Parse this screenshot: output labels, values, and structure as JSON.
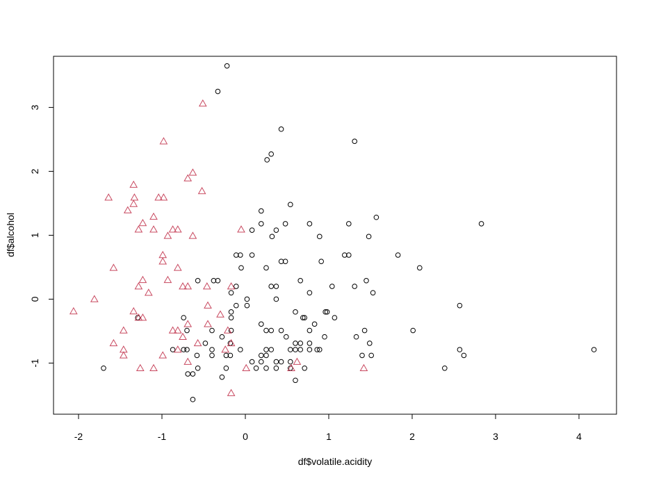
{
  "chart_data": {
    "type": "scatter",
    "xlabel": "df$volatile.acidity",
    "ylabel": "df$alcohol",
    "xlim": [
      -2.3,
      4.45
    ],
    "ylim": [
      -1.8,
      3.8
    ],
    "xticks": [
      -2,
      -1,
      0,
      1,
      2,
      3,
      4
    ],
    "yticks": [
      -1,
      0,
      1,
      2,
      3
    ],
    "xtick_labels": [
      "-2",
      "-1",
      "0",
      "1",
      "2",
      "3",
      "4"
    ],
    "ytick_labels": [
      "-1",
      "0",
      "1",
      "2",
      "3"
    ],
    "grid": false,
    "legend": "none",
    "series": [
      {
        "marker": "circle",
        "color": "#000000",
        "points": [
          [
            -0.22,
            3.65
          ],
          [
            -0.33,
            3.25
          ],
          [
            0.43,
            2.66
          ],
          [
            1.31,
            2.47
          ],
          [
            0.31,
            2.27
          ],
          [
            0.26,
            2.18
          ],
          [
            0.54,
            1.48
          ],
          [
            1.57,
            1.28
          ],
          [
            0.19,
            1.38
          ],
          [
            0.19,
            1.18
          ],
          [
            0.48,
            1.18
          ],
          [
            0.77,
            1.18
          ],
          [
            1.24,
            1.18
          ],
          [
            2.83,
            1.18
          ],
          [
            0.08,
            1.08
          ],
          [
            0.37,
            1.08
          ],
          [
            0.32,
            0.98
          ],
          [
            0.89,
            0.98
          ],
          [
            1.48,
            0.98
          ],
          [
            -0.11,
            0.69
          ],
          [
            -0.06,
            0.69
          ],
          [
            0.08,
            0.69
          ],
          [
            1.19,
            0.69
          ],
          [
            1.24,
            0.69
          ],
          [
            1.83,
            0.69
          ],
          [
            0.43,
            0.59
          ],
          [
            0.48,
            0.59
          ],
          [
            0.91,
            0.59
          ],
          [
            -0.05,
            0.49
          ],
          [
            0.25,
            0.49
          ],
          [
            2.09,
            0.49
          ],
          [
            -0.57,
            0.29
          ],
          [
            -0.38,
            0.29
          ],
          [
            -0.33,
            0.29
          ],
          [
            0.66,
            0.29
          ],
          [
            1.45,
            0.29
          ],
          [
            -0.11,
            0.2
          ],
          [
            0.31,
            0.2
          ],
          [
            0.37,
            0.2
          ],
          [
            1.04,
            0.2
          ],
          [
            1.31,
            0.2
          ],
          [
            -0.17,
            0.1
          ],
          [
            0.77,
            0.1
          ],
          [
            1.53,
            0.1
          ],
          [
            0.02,
            0.0
          ],
          [
            0.37,
            0.0
          ],
          [
            -0.11,
            -0.1
          ],
          [
            0.02,
            -0.1
          ],
          [
            2.57,
            -0.1
          ],
          [
            -0.17,
            -0.2
          ],
          [
            0.6,
            -0.2
          ],
          [
            0.96,
            -0.2
          ],
          [
            0.98,
            -0.2
          ],
          [
            -1.29,
            -0.29
          ],
          [
            -0.74,
            -0.29
          ],
          [
            -0.17,
            -0.29
          ],
          [
            0.69,
            -0.29
          ],
          [
            0.71,
            -0.29
          ],
          [
            1.07,
            -0.29
          ],
          [
            0.19,
            -0.39
          ],
          [
            0.83,
            -0.39
          ],
          [
            -0.7,
            -0.49
          ],
          [
            -0.4,
            -0.49
          ],
          [
            -0.17,
            -0.49
          ],
          [
            0.25,
            -0.49
          ],
          [
            0.31,
            -0.49
          ],
          [
            0.43,
            -0.49
          ],
          [
            0.77,
            -0.49
          ],
          [
            1.43,
            -0.49
          ],
          [
            2.01,
            -0.49
          ],
          [
            -0.28,
            -0.59
          ],
          [
            0.49,
            -0.59
          ],
          [
            0.95,
            -0.59
          ],
          [
            1.33,
            -0.59
          ],
          [
            -0.48,
            -0.69
          ],
          [
            -0.18,
            -0.69
          ],
          [
            0.6,
            -0.69
          ],
          [
            0.66,
            -0.69
          ],
          [
            0.77,
            -0.69
          ],
          [
            1.49,
            -0.69
          ],
          [
            -0.87,
            -0.79
          ],
          [
            -0.74,
            -0.79
          ],
          [
            -0.7,
            -0.79
          ],
          [
            -0.4,
            -0.79
          ],
          [
            -0.06,
            -0.79
          ],
          [
            0.25,
            -0.79
          ],
          [
            0.31,
            -0.79
          ],
          [
            0.54,
            -0.79
          ],
          [
            0.6,
            -0.79
          ],
          [
            0.66,
            -0.79
          ],
          [
            0.77,
            -0.79
          ],
          [
            0.86,
            -0.79
          ],
          [
            0.89,
            -0.79
          ],
          [
            2.57,
            -0.79
          ],
          [
            4.18,
            -0.79
          ],
          [
            -0.58,
            -0.88
          ],
          [
            -0.4,
            -0.88
          ],
          [
            -0.23,
            -0.88
          ],
          [
            -0.18,
            -0.88
          ],
          [
            0.19,
            -0.88
          ],
          [
            0.25,
            -0.88
          ],
          [
            1.4,
            -0.88
          ],
          [
            1.51,
            -0.88
          ],
          [
            2.62,
            -0.88
          ],
          [
            0.08,
            -0.98
          ],
          [
            0.19,
            -0.98
          ],
          [
            0.37,
            -0.98
          ],
          [
            0.43,
            -0.98
          ],
          [
            0.54,
            -0.98
          ],
          [
            -1.7,
            -1.08
          ],
          [
            -0.57,
            -1.08
          ],
          [
            -0.23,
            -1.08
          ],
          [
            0.13,
            -1.08
          ],
          [
            0.25,
            -1.08
          ],
          [
            0.37,
            -1.08
          ],
          [
            0.54,
            -1.08
          ],
          [
            0.71,
            -1.08
          ],
          [
            2.39,
            -1.08
          ],
          [
            -0.69,
            -1.17
          ],
          [
            -0.63,
            -1.17
          ],
          [
            -0.28,
            -1.22
          ],
          [
            0.6,
            -1.27
          ],
          [
            -0.63,
            -1.57
          ]
        ]
      },
      {
        "marker": "triangle",
        "color": "#c8485f",
        "points": [
          [
            -0.51,
            3.06
          ],
          [
            -0.98,
            2.47
          ],
          [
            -0.63,
            1.98
          ],
          [
            -0.69,
            1.89
          ],
          [
            -1.34,
            1.79
          ],
          [
            -0.52,
            1.69
          ],
          [
            -1.64,
            1.59
          ],
          [
            -1.33,
            1.59
          ],
          [
            -1.04,
            1.59
          ],
          [
            -0.98,
            1.59
          ],
          [
            -1.34,
            1.49
          ],
          [
            -1.41,
            1.39
          ],
          [
            -1.1,
            1.29
          ],
          [
            -1.23,
            1.19
          ],
          [
            -1.28,
            1.09
          ],
          [
            -1.1,
            1.09
          ],
          [
            -0.87,
            1.09
          ],
          [
            -0.81,
            1.09
          ],
          [
            -0.05,
            1.09
          ],
          [
            -0.93,
            0.99
          ],
          [
            -0.63,
            0.99
          ],
          [
            -0.99,
            0.69
          ],
          [
            -0.99,
            0.59
          ],
          [
            -1.58,
            0.49
          ],
          [
            -0.81,
            0.49
          ],
          [
            -1.23,
            0.3
          ],
          [
            -0.93,
            0.3
          ],
          [
            -1.28,
            0.2
          ],
          [
            -0.75,
            0.2
          ],
          [
            -0.69,
            0.2
          ],
          [
            -0.46,
            0.2
          ],
          [
            -0.17,
            0.2
          ],
          [
            -1.16,
            0.1
          ],
          [
            -1.81,
            0.0
          ],
          [
            -0.45,
            -0.1
          ],
          [
            -2.06,
            -0.19
          ],
          [
            -1.34,
            -0.19
          ],
          [
            -0.3,
            -0.24
          ],
          [
            -1.28,
            -0.29
          ],
          [
            -1.23,
            -0.29
          ],
          [
            -0.45,
            -0.39
          ],
          [
            -0.69,
            -0.39
          ],
          [
            -1.46,
            -0.49
          ],
          [
            -0.87,
            -0.49
          ],
          [
            -0.81,
            -0.49
          ],
          [
            -0.21,
            -0.49
          ],
          [
            -0.75,
            -0.59
          ],
          [
            -1.58,
            -0.69
          ],
          [
            -0.57,
            -0.69
          ],
          [
            -0.17,
            -0.69
          ],
          [
            -1.46,
            -0.79
          ],
          [
            -0.81,
            -0.79
          ],
          [
            -0.24,
            -0.79
          ],
          [
            -1.46,
            -0.88
          ],
          [
            -0.99,
            -0.88
          ],
          [
            -0.69,
            -0.98
          ],
          [
            0.62,
            -0.98
          ],
          [
            -1.26,
            -1.08
          ],
          [
            -1.1,
            -1.08
          ],
          [
            0.01,
            -1.08
          ],
          [
            0.55,
            -1.08
          ],
          [
            1.42,
            -1.08
          ],
          [
            -0.17,
            -1.47
          ]
        ]
      }
    ]
  }
}
